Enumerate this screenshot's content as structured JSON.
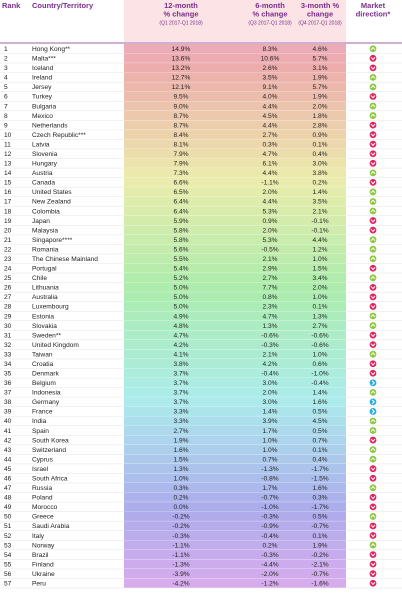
{
  "table": {
    "headers": {
      "rank": "Rank",
      "country": "Country/Territory",
      "m12": [
        "12-month",
        "% change",
        "(Q1 2017-Q1 2018)"
      ],
      "m6": [
        "6-month",
        "% change",
        "(Q3 2017-Q1 2018)"
      ],
      "m3": [
        "3-month %",
        "change",
        "(Q4 2017-Q1 2018)"
      ],
      "direction": [
        "Market",
        "direction*"
      ]
    },
    "rows": [
      [
        "1",
        "Hong Kong**",
        "14.9%",
        "8.3%",
        "4.6%"
      ],
      [
        "2",
        "Malta***",
        "13.6%",
        "10.6%",
        "5.7%"
      ],
      [
        "3",
        "Iceland",
        "13.2%",
        "2.6%",
        "3.1%"
      ],
      [
        "4",
        "Ireland",
        "12.7%",
        "3.5%",
        "1.9%"
      ],
      [
        "5",
        "Jersey",
        "12.1%",
        "9.1%",
        "5.7%"
      ],
      [
        "6",
        "Turkey",
        "9.5%",
        "4.0%",
        "1.9%"
      ],
      [
        "7",
        "Bulgaria",
        "9.0%",
        "4.4%",
        "2.0%"
      ],
      [
        "8",
        "Mexico",
        "8.7%",
        "4.5%",
        "1.8%"
      ],
      [
        "9",
        "Netherlands",
        "8.7%",
        "4.4%",
        "2.8%"
      ],
      [
        "10",
        "Czech Republic***",
        "8.4%",
        "2.7%",
        "0.9%"
      ],
      [
        "11",
        "Latvia",
        "8.1%",
        "0.3%",
        "0.1%"
      ],
      [
        "12",
        "Slovenia",
        "7.9%",
        "4.7%",
        "0.4%"
      ],
      [
        "13",
        "Hungary",
        "7.9%",
        "6.1%",
        "3.0%"
      ],
      [
        "14",
        "Austria",
        "7.3%",
        "4.4%",
        "3.8%"
      ],
      [
        "15",
        "Canada",
        "6.6%",
        "-1.1%",
        "0.2%"
      ],
      [
        "16",
        "United States",
        "6.5%",
        "2.0%",
        "1.4%"
      ],
      [
        "17",
        "New Zealand",
        "6.4%",
        "4.4%",
        "3.5%"
      ],
      [
        "18",
        "Colombia",
        "6.4%",
        "5.3%",
        "2.1%"
      ],
      [
        "19",
        "Japan",
        "5.9%",
        "0.9%",
        "-0.1%"
      ],
      [
        "20",
        "Malaysia",
        "5.8%",
        "2.0%",
        "-0.1%"
      ],
      [
        "21",
        "Singapore****",
        "5.8%",
        "5.3%",
        "4.4%"
      ],
      [
        "22",
        "Romania",
        "5.6%",
        "-0.5%",
        "1.2%"
      ],
      [
        "23",
        "The Chinese Mainland",
        "5.5%",
        "2.1%",
        "1.0%"
      ],
      [
        "24",
        "Portugal",
        "5.4%",
        "2.9%",
        "1.5%"
      ],
      [
        "25",
        "Chile",
        "5.2%",
        "2.7%",
        "3.4%"
      ],
      [
        "26",
        "Lithuania",
        "5.0%",
        "7.7%",
        "2.0%"
      ],
      [
        "27",
        "Australia",
        "5.0%",
        "0.8%",
        "1.0%"
      ],
      [
        "28",
        "Luxembourg",
        "5.0%",
        "2.3%",
        "0.1%"
      ],
      [
        "29",
        "Estonia",
        "4.9%",
        "4.7%",
        "1.3%"
      ],
      [
        "30",
        "Slovakia",
        "4.8%",
        "1.3%",
        "2.7%"
      ],
      [
        "31",
        "Sweden**",
        "4.7%",
        "-0.6%",
        "-0.6%"
      ],
      [
        "32",
        "United Kingdom",
        "4.2%",
        "-0.3%",
        "-0.6%"
      ],
      [
        "33",
        "Taiwan",
        "4.1%",
        "2.1%",
        "1.0%"
      ],
      [
        "34",
        "Croatia",
        "3.8%",
        "4.2%",
        "0.6%"
      ],
      [
        "35",
        "Denmark",
        "3.7%",
        "-0.4%",
        "-1.0%"
      ],
      [
        "36",
        "Belgium",
        "3.7%",
        "3.0%",
        "-0.4%"
      ],
      [
        "37",
        "Indonesia",
        "3.7%",
        "2.0%",
        "1.4%"
      ],
      [
        "38",
        "Germany",
        "3.7%",
        "3.0%",
        "1.6%"
      ],
      [
        "39",
        "France",
        "3.3%",
        "1.4%",
        "0.5%"
      ],
      [
        "40",
        "India",
        "3.3%",
        "3.9%",
        "4.5%"
      ],
      [
        "41",
        "Spain",
        "2.7%",
        "1.7%",
        "0.5%"
      ],
      [
        "42",
        "South Korea",
        "1.9%",
        "1.0%",
        "0.7%"
      ],
      [
        "43",
        "Switzerland",
        "1.6%",
        "1.0%",
        "0.1%"
      ],
      [
        "44",
        "Cyprus",
        "1.5%",
        "0.7%",
        "0.4%"
      ],
      [
        "45",
        "Israel",
        "1.3%",
        "-1.3%",
        "-1.7%"
      ],
      [
        "46",
        "South Africa",
        "1.0%",
        "-0.8%",
        "-1.5%"
      ],
      [
        "47",
        "Russia",
        "0.3%",
        "1.7%",
        "1.6%"
      ],
      [
        "48",
        "Poland",
        "0.2%",
        "-0.7%",
        "0.3%"
      ],
      [
        "49",
        "Morocco",
        "0.0%",
        "-1.0%",
        "-1.7%"
      ],
      [
        "50",
        "Greece",
        "-0.2%",
        "-0.3%",
        "0.5%"
      ],
      [
        "51",
        "Saudi Arabia",
        "-0.2%",
        "-0.9%",
        "-0.7%"
      ],
      [
        "52",
        "Italy",
        "-0.3%",
        "-0.4%",
        "0.1%"
      ],
      [
        "53",
        "Norway",
        "-1.1%",
        "0.2%",
        "1.9%"
      ],
      [
        "54",
        "Brazil",
        "-1.1%",
        "-0.3%",
        "-0.2%"
      ],
      [
        "55",
        "Finland",
        "-1.3%",
        "-4.4%",
        "-2.1%"
      ],
      [
        "56",
        "Ukraine",
        "-3.9%",
        "-2.0%",
        "-0.7%"
      ],
      [
        "57",
        "Peru",
        "-4.2%",
        "-1.2%",
        "-1.6%"
      ]
    ],
    "directions": [
      "up",
      "down",
      "down",
      "up",
      "up",
      "down",
      "up",
      "up",
      "down",
      "down",
      "down",
      "down",
      "down",
      "up",
      "down",
      "up",
      "up",
      "up",
      "down",
      "down",
      "up",
      "up",
      "up",
      "down",
      "up",
      "down",
      "down",
      "down",
      "up",
      "up",
      "down",
      "down",
      "up",
      "down",
      "down",
      "flat",
      "up",
      "flat",
      "flat",
      "up",
      "up",
      "down",
      "up",
      "up",
      "down",
      "down",
      "up",
      "down",
      "down",
      "up",
      "down",
      "down",
      "up",
      "down",
      "down",
      "down",
      "down"
    ]
  }
}
